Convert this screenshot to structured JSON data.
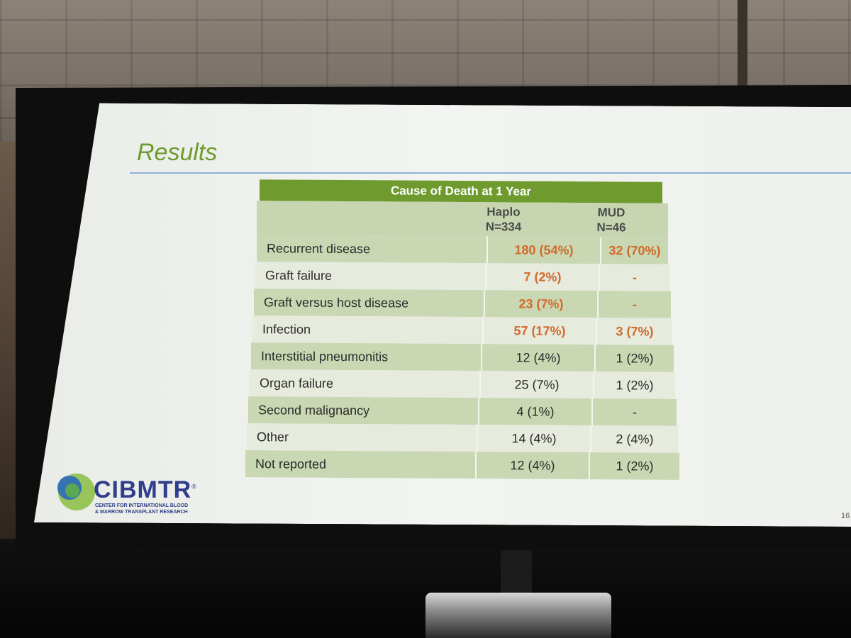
{
  "slide": {
    "title": "Results",
    "page_number": "16"
  },
  "table": {
    "caption": "Cause of Death at 1 Year",
    "columns": [
      {
        "name": "Haplo",
        "n": "N=334"
      },
      {
        "name": "MUD",
        "n": "N=46"
      }
    ],
    "rows": [
      {
        "label": "Recurrent disease",
        "haplo": "180 (54%)",
        "mud": "32 (70%)",
        "highlight": true
      },
      {
        "label": "Graft failure",
        "haplo": "7 (2%)",
        "mud": "-",
        "highlight": true
      },
      {
        "label": "Graft versus host disease",
        "haplo": "23 (7%)",
        "mud": "-",
        "highlight": true
      },
      {
        "label": "Infection",
        "haplo": "57 (17%)",
        "mud": "3 (7%)",
        "highlight": true
      },
      {
        "label": "Interstitial pneumonitis",
        "haplo": "12 (4%)",
        "mud": "1 (2%)",
        "highlight": false
      },
      {
        "label": "Organ failure",
        "haplo": "25 (7%)",
        "mud": "1 (2%)",
        "highlight": false
      },
      {
        "label": "Second malignancy",
        "haplo": "4 (1%)",
        "mud": "-",
        "highlight": false
      },
      {
        "label": "Other",
        "haplo": "14 (4%)",
        "mud": "2 (4%)",
        "highlight": false
      },
      {
        "label": "Not reported",
        "haplo": "12 (4%)",
        "mud": "1 (2%)",
        "highlight": false
      }
    ]
  },
  "logo": {
    "name": "CIBMTR",
    "mark": "®",
    "subtitle_line1": "CENTER FOR INTERNATIONAL BLOOD",
    "subtitle_line2": "& MARROW TRANSPLANT RESEARCH"
  },
  "colors": {
    "title_green": "#6f9a2e",
    "highlight_orange": "#d2692a",
    "logo_blue": "#2f3f8c"
  }
}
